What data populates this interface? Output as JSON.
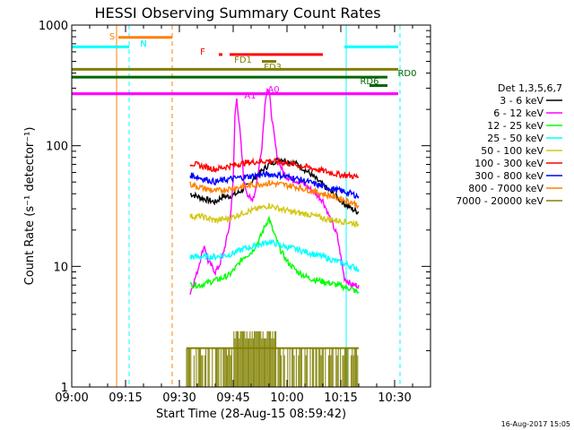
{
  "chart_data": {
    "type": "line",
    "title": "HESSI Observing Summary Count Rates",
    "xlabel": "Start Time (28-Aug-15 08:59:42)",
    "ylabel": "Count Rate (s⁻¹ detector⁻¹)",
    "x_axis": {
      "unit": "minutes from 09:00",
      "range": [
        0,
        100
      ],
      "tick_labels": [
        "09:00",
        "09:15",
        "09:30",
        "09:45",
        "10:00",
        "10:15",
        "10:30"
      ],
      "ticks": [
        0,
        15,
        30,
        45,
        60,
        75,
        90
      ]
    },
    "y_axis": {
      "scale": "log",
      "range": [
        1,
        1000
      ],
      "tick_labels": [
        "1",
        "10",
        "100",
        "1000"
      ],
      "ticks": [
        1,
        10,
        100,
        1000
      ]
    },
    "legend": {
      "title": "Det 1,3,5,6,7",
      "placement": "right",
      "entries": [
        {
          "label": "3 - 6 keV",
          "color": "#000000"
        },
        {
          "label": "6 - 12 keV",
          "color": "#ff00ff"
        },
        {
          "label": "12 - 25 keV",
          "color": "#00ff00"
        },
        {
          "label": "25 - 50 keV",
          "color": "#00ffff"
        },
        {
          "label": "50 - 100 keV",
          "color": "#d4c814"
        },
        {
          "label": "100 - 300 keV",
          "color": "#ff0000"
        },
        {
          "label": "300 - 800 keV",
          "color": "#0000ff"
        },
        {
          "label": "800 - 7000 keV",
          "color": "#ff8000"
        },
        {
          "label": "7000 - 20000 keV",
          "color": "#808000"
        }
      ]
    },
    "series": [
      {
        "name": "3 - 6 keV",
        "color": "#000000",
        "x": [
          33,
          36,
          40,
          42,
          44,
          46,
          48,
          50,
          52,
          55,
          58,
          60,
          63,
          66,
          69,
          72,
          75,
          78,
          80
        ],
        "y": [
          40,
          37,
          34,
          38,
          38,
          40,
          44,
          50,
          58,
          70,
          78,
          75,
          70,
          60,
          50,
          42,
          35,
          30,
          28
        ]
      },
      {
        "name": "6 - 12 keV",
        "color": "#ff00ff",
        "x": [
          33,
          35,
          36,
          37,
          38,
          39,
          40,
          41,
          42,
          43,
          44,
          45,
          45.5,
          46,
          47,
          48,
          49,
          50,
          51,
          52,
          53,
          54,
          54.5,
          55,
          56,
          57,
          58,
          59,
          60,
          62,
          64,
          66,
          68,
          70,
          72,
          74,
          75,
          76,
          78,
          80
        ],
        "y": [
          6,
          9,
          12,
          15,
          11,
          10,
          9,
          10,
          12,
          16,
          22,
          50,
          180,
          250,
          120,
          50,
          40,
          35,
          40,
          60,
          100,
          250,
          300,
          280,
          150,
          90,
          70,
          60,
          55,
          52,
          50,
          45,
          40,
          35,
          25,
          18,
          12,
          8,
          7,
          7
        ]
      },
      {
        "name": "12 - 25 keV",
        "color": "#00ff00",
        "x": [
          33,
          36,
          39,
          42,
          44,
          46,
          48,
          50,
          52,
          54,
          55,
          56,
          58,
          60,
          63,
          66,
          70,
          74,
          78,
          80
        ],
        "y": [
          7,
          7,
          7.5,
          8,
          8.5,
          10,
          12,
          13,
          16,
          22,
          25,
          20,
          14,
          11,
          9,
          8,
          7.5,
          7,
          6.5,
          6
        ]
      },
      {
        "name": "25 - 50 keV",
        "color": "#00ffff",
        "x": [
          33,
          36,
          40,
          44,
          48,
          52,
          55,
          58,
          62,
          66,
          70,
          74,
          78,
          80
        ],
        "y": [
          12,
          12,
          12,
          12.5,
          14,
          15,
          16,
          15,
          14,
          13,
          12,
          11,
          10,
          9.5
        ]
      },
      {
        "name": "50 - 100 keV",
        "color": "#d4c814",
        "x": [
          33,
          36,
          40,
          44,
          48,
          52,
          55,
          58,
          62,
          66,
          70,
          74,
          78,
          80
        ],
        "y": [
          26,
          26,
          24,
          25,
          28,
          30,
          32,
          30,
          28,
          27,
          25,
          24,
          23,
          22
        ]
      },
      {
        "name": "100 - 300 keV",
        "color": "#ff0000",
        "x": [
          33,
          36,
          40,
          44,
          48,
          52,
          55,
          58,
          62,
          66,
          70,
          74,
          78,
          80
        ],
        "y": [
          72,
          68,
          64,
          68,
          72,
          74,
          75,
          73,
          70,
          66,
          62,
          58,
          56,
          55
        ]
      },
      {
        "name": "300 - 800 keV",
        "color": "#0000ff",
        "x": [
          33,
          36,
          40,
          44,
          48,
          52,
          55,
          58,
          62,
          66,
          70,
          74,
          78,
          80
        ],
        "y": [
          57,
          54,
          50,
          53,
          55,
          57,
          58,
          57,
          54,
          50,
          46,
          43,
          40,
          38
        ]
      },
      {
        "name": "800 - 7000 keV",
        "color": "#ff8000",
        "x": [
          33,
          36,
          40,
          44,
          48,
          52,
          55,
          58,
          62,
          66,
          70,
          74,
          78,
          80
        ],
        "y": [
          48,
          45,
          42,
          44,
          46,
          48,
          49,
          48,
          46,
          43,
          40,
          37,
          34,
          32
        ]
      }
    ],
    "attenuator_bars": [
      {
        "label": "S",
        "color": "#ff8000",
        "x_start": 13,
        "x_end": 28,
        "y": 790
      },
      {
        "label": "N",
        "color": "#00ffff",
        "x_start": 0,
        "x_end": 16,
        "y": 660
      },
      {
        "label": "N",
        "color": "#00ffff",
        "x_start": 76,
        "x_end": 91,
        "y": 660
      },
      {
        "label": "F",
        "color": "#ff0000",
        "x_start": 41,
        "x_end": 42,
        "y": 570
      },
      {
        "label": "",
        "color": "#ff0000",
        "x_start": 44,
        "x_end": 70,
        "y": 570
      },
      {
        "label": "FD1",
        "color": "#808000",
        "x_start": 53,
        "x_end": 57,
        "y": 500
      },
      {
        "label": "FD3",
        "color": "#808000",
        "x_start": 0,
        "x_end": 91,
        "y": 430
      },
      {
        "label": "RD0",
        "color": "#006600",
        "x_start": 0,
        "x_end": 88,
        "y": 370
      },
      {
        "label": "RD6",
        "color": "#006600",
        "x_start": 83,
        "x_end": 88,
        "y": 315
      },
      {
        "label": "A1",
        "color": "#ff00ff",
        "x_start": 0,
        "x_end": 91,
        "y": 270
      },
      {
        "label": "A0",
        "color": "#ff00ff",
        "x_start": 0,
        "x_end": 91,
        "y": 270
      }
    ],
    "vertical_markers": [
      {
        "x": 0,
        "color": "#00ffff",
        "style": "solid"
      },
      {
        "x": 12.5,
        "color": "#ff8000",
        "style": "solid"
      },
      {
        "x": 16,
        "color": "#00ffff",
        "style": "dashed"
      },
      {
        "x": 28,
        "color": "#ff8000",
        "style": "dashed"
      },
      {
        "x": 76.5,
        "color": "#00ffff",
        "style": "solid"
      },
      {
        "x": 91.5,
        "color": "#00ffff",
        "style": "dashed"
      }
    ],
    "high_energy_band": {
      "color": "#808000",
      "x_start": 32,
      "x_end": 80,
      "y_low": 1,
      "y_high": 2.1,
      "burst": {
        "x_start": 45,
        "x_end": 57,
        "y_high": 2.9
      }
    }
  },
  "footer": {
    "timestamp": "16-Aug-2017 15:05"
  }
}
